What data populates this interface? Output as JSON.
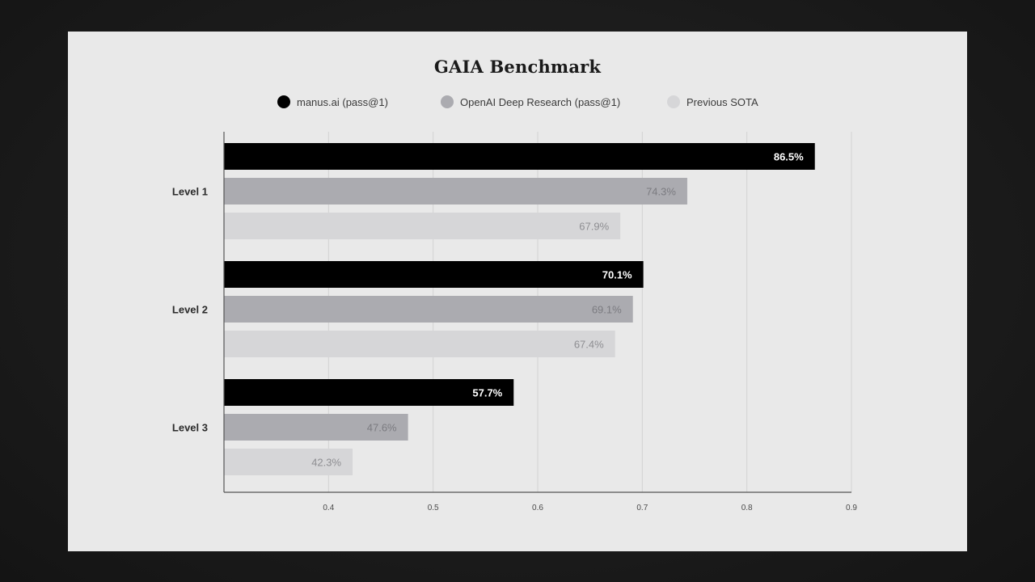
{
  "chart_data": {
    "type": "bar",
    "orientation": "horizontal",
    "title": "GAIA Benchmark",
    "categories": [
      "Level 1",
      "Level 2",
      "Level 3"
    ],
    "series": [
      {
        "name": "manus.ai (pass@1)",
        "color": "#000000",
        "label_color": "#ffffff",
        "values": [
          0.865,
          0.701,
          0.577
        ],
        "labels": [
          "86.5%",
          "70.1%",
          "57.7%"
        ]
      },
      {
        "name": "OpenAI Deep Research (pass@1)",
        "color": "#ababb0",
        "label_color": "#7b7b80",
        "values": [
          0.743,
          0.691,
          0.476
        ],
        "labels": [
          "74.3%",
          "69.1%",
          "47.6%"
        ]
      },
      {
        "name": "Previous SOTA",
        "color": "#d6d6d8",
        "label_color": "#8e8e92",
        "values": [
          0.679,
          0.674,
          0.423
        ],
        "labels": [
          "67.9%",
          "67.4%",
          "42.3%"
        ]
      }
    ],
    "xlim": [
      0.3,
      0.9
    ],
    "xticks": [
      0.4,
      0.5,
      0.6,
      0.7,
      0.8,
      0.9
    ],
    "xtick_labels": [
      "0.4",
      "0.5",
      "0.6",
      "0.7",
      "0.8",
      "0.9"
    ],
    "grid": true,
    "legend_position": "top"
  }
}
